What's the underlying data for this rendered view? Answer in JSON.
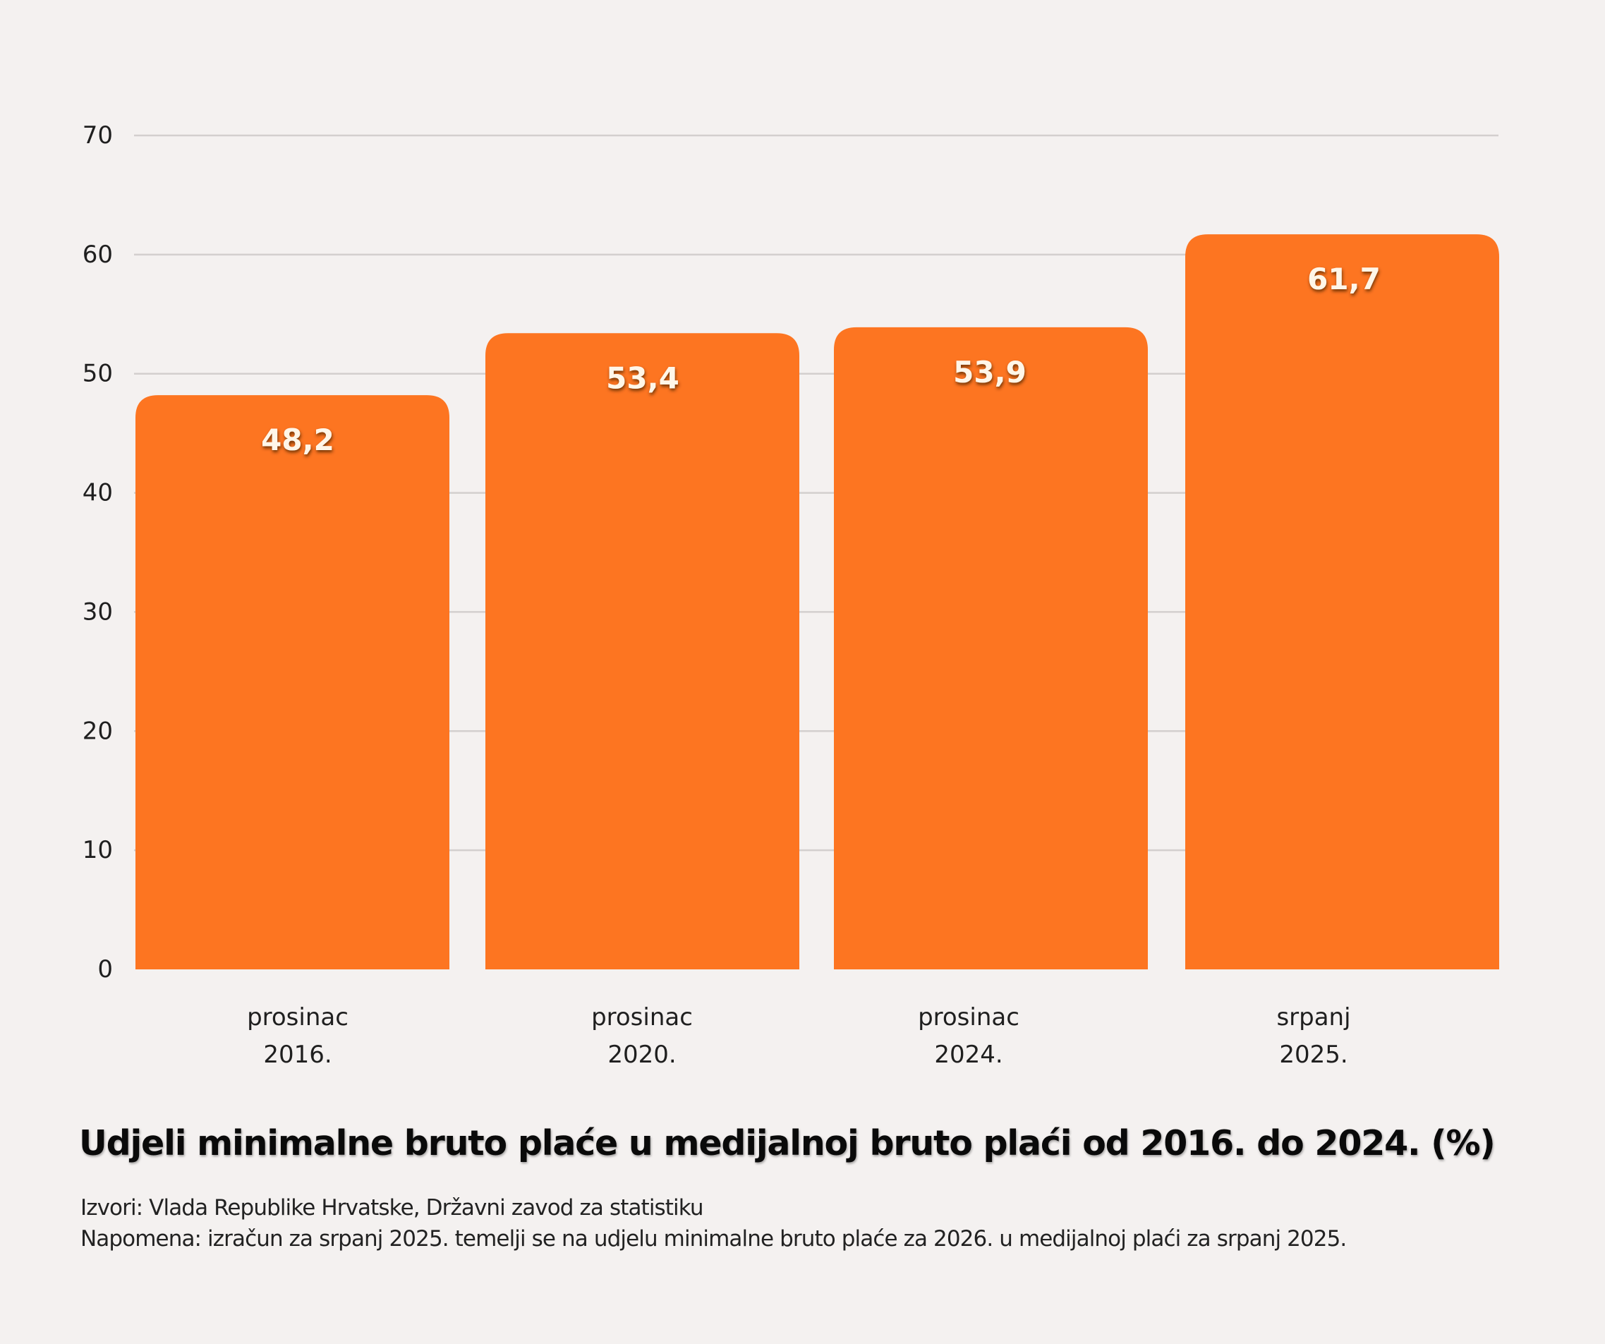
{
  "chart_data": {
    "type": "bar",
    "title": "Udjeli minimalne bruto plaće u medijalnoj bruto plaći od 2016. do 2024. (%)",
    "xlabel": "",
    "ylabel": "",
    "categories": [
      [
        "prosinac",
        "2016."
      ],
      [
        "prosinac",
        "2020."
      ],
      [
        "prosinac",
        "2024."
      ],
      [
        "srpanj",
        "2025."
      ]
    ],
    "values": [
      48.2,
      53.4,
      53.9,
      61.7
    ],
    "value_labels": [
      "48,2",
      "53,4",
      "53,9",
      "61,7"
    ],
    "ylim": [
      0,
      70
    ],
    "yticks": [
      0,
      10,
      20,
      30,
      40,
      50,
      60,
      70
    ],
    "grid": true,
    "legend": "none",
    "bar_color": "#fd7521",
    "value_label_color": "#fff6e8",
    "grid_color": "#d3cfce",
    "background_color": "#f4f1f0"
  },
  "footer": {
    "source": "Izvori: Vlada Republike Hrvatske, Državni zavod za statistiku",
    "note": "Napomena: izračun za srpanj 2025. temelji se na udjelu minimalne bruto plaće za 2026. u medijalnoj plaći za srpanj 2025."
  }
}
